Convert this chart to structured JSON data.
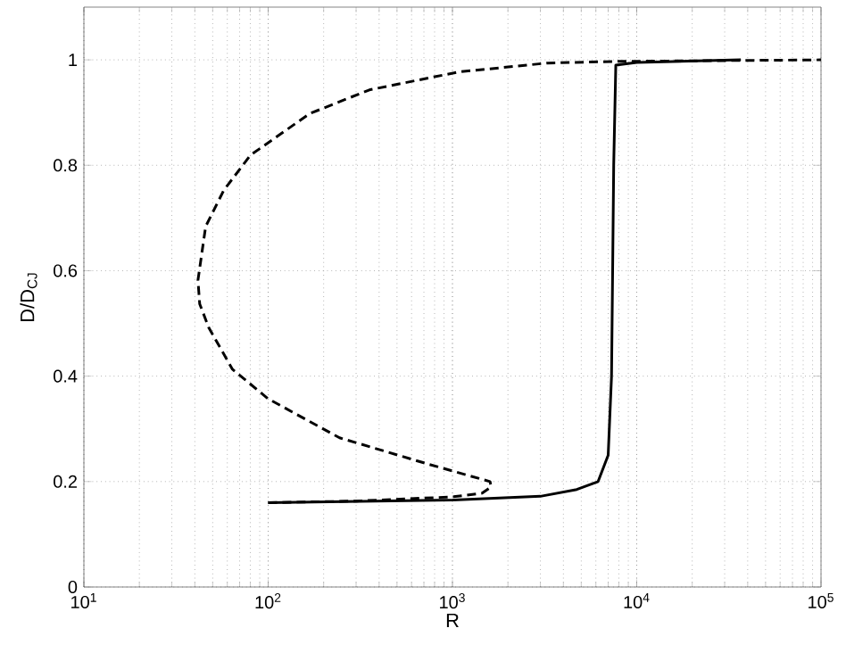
{
  "chart_data": {
    "type": "line",
    "xlabel": "R",
    "ylabel": "D/D$_{CJ}$",
    "log": "x",
    "grid": true,
    "marker": "none",
    "xlim": [
      10,
      100000
    ],
    "ylim": [
      0,
      1.1
    ],
    "xticks": [
      {
        "value": 10,
        "label": "10$^{1}$"
      },
      {
        "value": 100,
        "label": "10$^{2}$"
      },
      {
        "value": 1000,
        "label": "10$^{3}$"
      },
      {
        "value": 10000,
        "label": "10$^{4}$"
      },
      {
        "value": 100000,
        "label": "10$^{5}$"
      }
    ],
    "yticks": [
      0,
      0.2,
      0.4,
      0.6,
      0.8,
      1
    ],
    "series": [
      {
        "color": "#000000",
        "line_style": "solid",
        "x": [
          100,
          1000,
          3000,
          4730,
          6170,
          7000,
          7300,
          7400,
          7500,
          7700,
          10000,
          36700
        ],
        "values": [
          0.16,
          0.165,
          0.172,
          0.185,
          0.2,
          0.25,
          0.4,
          0.6,
          0.8,
          0.99,
          0.995,
          1.0
        ]
      },
      {
        "color": "#000000",
        "line_style": "dashed",
        "x": [
          100,
          300,
          1000,
          1450,
          1620,
          1600,
          740,
          244,
          100,
          64,
          47.6,
          42.5,
          41.6,
          45.8,
          57.3,
          80,
          168,
          354,
          1080,
          3290,
          7730,
          100000
        ],
        "values": [
          0.16,
          0.163,
          0.171,
          0.178,
          0.19,
          0.2,
          0.233,
          0.283,
          0.357,
          0.413,
          0.492,
          0.537,
          0.582,
          0.684,
          0.752,
          0.819,
          0.898,
          0.943,
          0.977,
          0.994,
          0.997,
          1.0
        ]
      }
    ]
  }
}
